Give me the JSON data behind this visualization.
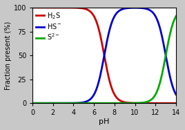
{
  "title": "",
  "xlabel": "pH",
  "ylabel": "Fraction present (%)",
  "xlim": [
    0,
    14
  ],
  "ylim": [
    0,
    100
  ],
  "xticks": [
    0,
    2,
    4,
    6,
    8,
    10,
    12,
    14
  ],
  "yticks": [
    0,
    25,
    50,
    75,
    100
  ],
  "pKa1": 7.0,
  "pKa2": 13.0,
  "colors": [
    "#cc0000",
    "#0000cc",
    "#00aa00"
  ],
  "legend_labels": [
    "H$_2$S",
    "HS$^-$",
    "S$^{2-}$"
  ],
  "line_width": 2.0,
  "background_color": "#c8c8c8",
  "plot_background": "#ffffff"
}
